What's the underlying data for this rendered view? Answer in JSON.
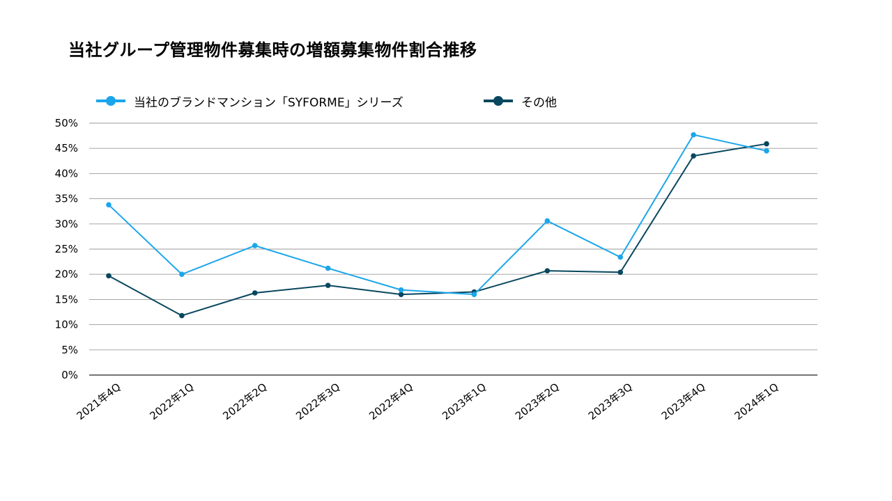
{
  "chart_data": {
    "type": "line",
    "title": "当社グループ管理物件募集時の増額募集物件割合推移",
    "xlabel": "",
    "ylabel": "",
    "categories": [
      "2021年4Q",
      "2022年1Q",
      "2022年2Q",
      "2022年3Q",
      "2022年4Q",
      "2023年1Q",
      "2023年2Q",
      "2023年3Q",
      "2023年4Q",
      "2024年1Q"
    ],
    "ylim": [
      0,
      50
    ],
    "ytick_step": 5,
    "y_tick_labels": [
      "0%",
      "5%",
      "10%",
      "15%",
      "20%",
      "25%",
      "30%",
      "35%",
      "40%",
      "45%",
      "50%"
    ],
    "y_unit": "%",
    "grid": true,
    "legend_position": "top",
    "series": [
      {
        "name": "当社のブランドマンション「SYFORME」シリーズ",
        "color": "#1ba6eb",
        "values": [
          33.8,
          20.0,
          25.7,
          21.2,
          16.9,
          16.0,
          30.6,
          23.4,
          47.7,
          44.5
        ]
      },
      {
        "name": "その他",
        "color": "#08475e",
        "values": [
          19.7,
          11.8,
          16.3,
          17.8,
          16.0,
          16.5,
          20.7,
          20.4,
          43.5,
          45.9
        ]
      }
    ]
  }
}
